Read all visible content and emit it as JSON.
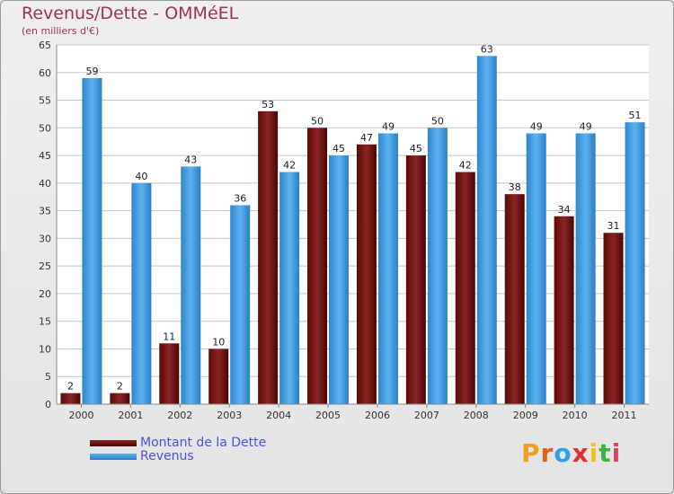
{
  "header": {
    "title": "Revenus/Dette - OMMéEL",
    "subtitle": "(en milliers d'€)"
  },
  "legend": {
    "dette_label": "Montant de la Dette",
    "revenus_label": "Revenus"
  },
  "logo": {
    "text": "Proxiti",
    "letter_colors": [
      "#f0a020",
      "#e06020",
      "#30a0e0",
      "#e03030",
      "#f0c020",
      "#40b040",
      "#e04060"
    ]
  },
  "colors": {
    "dette": "#7a1515",
    "revenus": "#4aa3e6",
    "title": "#a0305a"
  },
  "chart_data": {
    "type": "bar",
    "title": "Revenus/Dette - OMMéEL",
    "subtitle": "(en milliers d'€)",
    "categories": [
      "2000",
      "2001",
      "2002",
      "2003",
      "2004",
      "2005",
      "2006",
      "2007",
      "2008",
      "2009",
      "2010",
      "2011"
    ],
    "series": [
      {
        "name": "Montant de la Dette",
        "values": [
          2,
          2,
          11,
          10,
          53,
          50,
          47,
          45,
          42,
          38,
          34,
          31
        ]
      },
      {
        "name": "Revenus",
        "values": [
          59,
          40,
          43,
          36,
          42,
          45,
          49,
          50,
          63,
          49,
          49,
          51
        ]
      }
    ],
    "ylim": [
      0,
      65
    ],
    "yticks": [
      0,
      5,
      10,
      15,
      20,
      25,
      30,
      35,
      40,
      45,
      50,
      55,
      60,
      65
    ],
    "grid": true,
    "legend_position": "bottom-left"
  }
}
